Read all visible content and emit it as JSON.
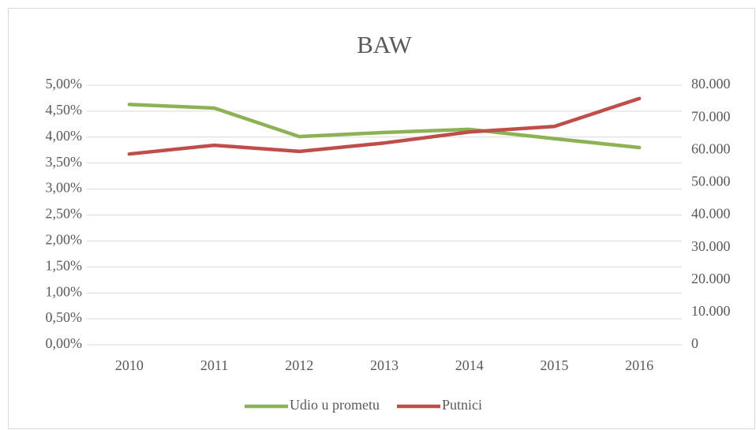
{
  "chart_data": {
    "type": "line",
    "title": "BAW",
    "categories": [
      "2010",
      "2011",
      "2012",
      "2013",
      "2014",
      "2015",
      "2016"
    ],
    "series": [
      {
        "name": "Udio u prometu",
        "color": "#8db255",
        "values": [
          4.63,
          4.56,
          4.01,
          4.09,
          4.15,
          3.97,
          3.8
        ]
      },
      {
        "name": "Putnici",
        "color": "#bf4e4b",
        "axis": "y2",
        "values": [
          58800,
          61500,
          59600,
          62200,
          65600,
          67300,
          75900
        ]
      }
    ],
    "ylim": [
      0,
      5
    ],
    "yticks": [
      {
        "value": 0,
        "label": "0,00%"
      },
      {
        "value": 0.5,
        "label": "0,50%"
      },
      {
        "value": 1,
        "label": "1,00%"
      },
      {
        "value": 1.5,
        "label": "1,50%"
      },
      {
        "value": 2,
        "label": "2,00%"
      },
      {
        "value": 2.5,
        "label": "2,50%"
      },
      {
        "value": 3,
        "label": "3,00%"
      },
      {
        "value": 3.5,
        "label": "3,50%"
      },
      {
        "value": 4,
        "label": "4,00%"
      },
      {
        "value": 4.5,
        "label": "4,50%"
      },
      {
        "value": 5,
        "label": "5,00%"
      }
    ],
    "y2lim": [
      0,
      80000
    ],
    "y2ticks": [
      0,
      {
        "value": 10000,
        "label": "10.000"
      },
      {
        "value": 20000,
        "label": "20.000"
      },
      {
        "value": 30000,
        "label": "30.000"
      },
      {
        "value": 40000,
        "label": "40.000"
      },
      {
        "value": 50000,
        "label": "50.000"
      },
      {
        "value": 60000,
        "label": "60.000"
      },
      {
        "value": 70000,
        "label": "70.000"
      },
      {
        "value": 80000,
        "label": "80.000"
      }
    ],
    "grid": true,
    "legend": "bottom"
  }
}
